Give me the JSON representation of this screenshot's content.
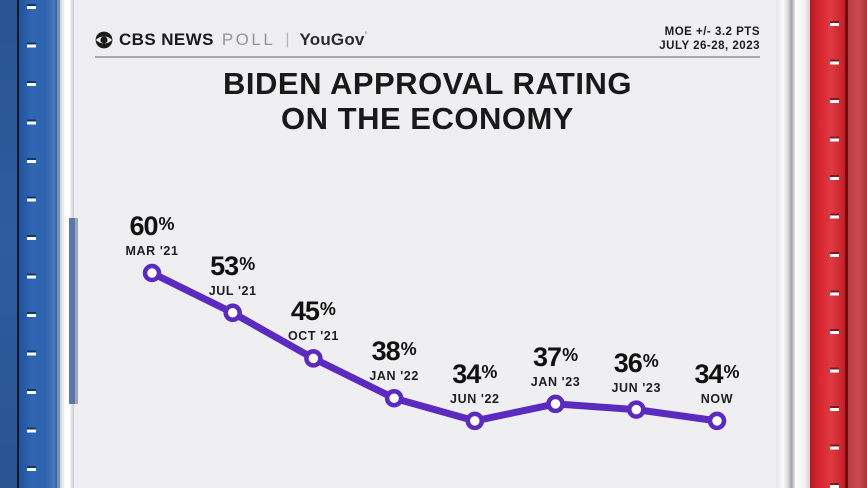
{
  "header": {
    "brand_cbs": "CBS NEWS",
    "brand_poll": "POLL",
    "brand_separator": "|",
    "brand_partner": "YouGov",
    "brand_partner_mark": "’",
    "moe_line1": "MOE +/- 3.2 PTS",
    "moe_line2": "JULY 26-28, 2023"
  },
  "title": {
    "line1": "BIDEN APPROVAL RATING",
    "line2": "ON THE ECONOMY"
  },
  "chart_data": {
    "type": "line",
    "title": "Biden approval rating on the economy",
    "categories": [
      "MAR '21",
      "JUL '21",
      "OCT '21",
      "JAN '22",
      "JUN '22",
      "JAN '23",
      "JUN '23",
      "NOW"
    ],
    "values": [
      60,
      53,
      45,
      38,
      34,
      37,
      36,
      34
    ],
    "unit": "%",
    "ylim": [
      30,
      65
    ],
    "grid": false,
    "axes_visible": false,
    "data_labels_visible": true,
    "marker": "open-circle",
    "line_color": "#5b2abe"
  },
  "colors": {
    "background": "#efeff1",
    "line_purple": "#5b2abe",
    "pillar_blue": "#2e62ad",
    "pillar_red": "#d72530",
    "text_dark": "#1b1b1b",
    "divider_gray": "#a6a6a8"
  }
}
